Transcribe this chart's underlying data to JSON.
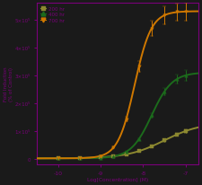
{
  "xlabel": "Log[Concentration] (M)",
  "ylabel": "Fold Induction\n(% of Control)",
  "xlim": [
    -10.5,
    -6.7
  ],
  "ylim": [
    -20000,
    560000
  ],
  "xticks": [
    -10,
    -9,
    -8,
    -7
  ],
  "xtick_labels": [
    "-10",
    "-9",
    "-8",
    "-7"
  ],
  "ytick_values": [
    0,
    100000,
    200000,
    300000,
    400000,
    500000
  ],
  "ytick_labels": [
    "0",
    "1×10⁵",
    "2×10⁵",
    "3×10⁵",
    "4×10⁵",
    "5×10⁵"
  ],
  "series": [
    {
      "label": "200 hr",
      "color": "#8c8830",
      "marker": "s",
      "bottom": 1000,
      "top": 130000,
      "ec50": -7.5,
      "hill": 1.0
    },
    {
      "label": "400 hr",
      "color": "#1c6b1c",
      "marker": "^",
      "bottom": 1000,
      "top": 310000,
      "ec50": -7.8,
      "hill": 1.8
    },
    {
      "label": "700 hr",
      "color": "#d07800",
      "marker": "v",
      "bottom": 1000,
      "top": 530000,
      "ec50": -8.2,
      "hill": 2.2
    }
  ],
  "x_data": [
    -10.0,
    -9.5,
    -9.0,
    -8.7,
    -8.4,
    -8.1,
    -7.8,
    -7.5,
    -7.2,
    -7.0
  ],
  "error_scale": 0.06,
  "axis_color": "#7a007a",
  "label_color": "#7a007a",
  "tick_color": "#7a007a",
  "background_color": "#1a1a1a",
  "legend_labels": [
    "200 hr",
    "400 hr",
    "700 hr"
  ],
  "legend_colors": [
    "#8c8830",
    "#1c6b1c",
    "#d07800"
  ],
  "legend_markers": [
    "s",
    "^",
    "v"
  ]
}
